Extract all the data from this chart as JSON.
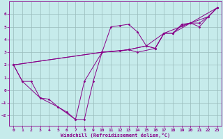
{
  "xlabel": "Windchill (Refroidissement éolien,°C)",
  "xlim": [
    -0.5,
    23.5
  ],
  "ylim": [
    -2.8,
    7.0
  ],
  "xticks": [
    0,
    1,
    2,
    3,
    4,
    5,
    6,
    7,
    8,
    9,
    10,
    11,
    12,
    13,
    14,
    15,
    16,
    17,
    18,
    19,
    20,
    21,
    22,
    23
  ],
  "yticks": [
    -2,
    -1,
    0,
    1,
    2,
    3,
    4,
    5,
    6
  ],
  "bg_color": "#c6ebeb",
  "line_color": "#880088",
  "grid_color": "#99bbbb",
  "line1_x": [
    0,
    1,
    2,
    3,
    4,
    5,
    7,
    8,
    9,
    10,
    11,
    12,
    13,
    14,
    15,
    16,
    17,
    18,
    19,
    20,
    21,
    22,
    23
  ],
  "line1_y": [
    2.0,
    0.7,
    0.7,
    -0.6,
    -0.7,
    -1.3,
    -2.3,
    -2.3,
    0.7,
    3.0,
    5.0,
    5.1,
    5.2,
    4.6,
    3.5,
    3.3,
    4.5,
    4.5,
    5.2,
    5.3,
    5.0,
    5.8,
    6.5
  ],
  "line2_x": [
    0,
    1,
    3,
    5,
    6,
    7,
    8,
    10,
    12,
    13,
    14,
    16,
    17,
    18,
    19,
    20,
    21,
    22,
    23
  ],
  "line2_y": [
    2.0,
    0.7,
    -0.6,
    -1.3,
    -1.7,
    -2.3,
    0.7,
    3.0,
    3.1,
    3.2,
    3.0,
    3.3,
    4.5,
    4.5,
    5.1,
    5.3,
    5.3,
    5.8,
    6.5
  ],
  "line3_x": [
    0,
    10,
    12,
    13,
    15,
    16,
    17,
    18,
    20,
    22,
    23
  ],
  "line3_y": [
    2.0,
    3.0,
    3.1,
    3.2,
    3.5,
    3.3,
    4.5,
    4.5,
    5.3,
    5.8,
    6.5
  ],
  "line4_x": [
    0,
    10,
    13,
    15,
    17,
    20,
    23
  ],
  "line4_y": [
    2.0,
    3.0,
    3.2,
    3.5,
    4.5,
    5.3,
    6.5
  ]
}
